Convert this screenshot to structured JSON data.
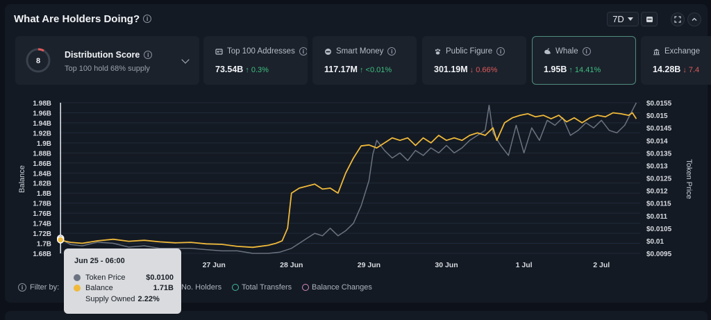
{
  "header": {
    "title": "What Are Holders Doing?",
    "range": "7D"
  },
  "distribution": {
    "title": "Distribution Score",
    "score": "8",
    "subtitle": "Top 100 hold 68% supply"
  },
  "cards": [
    {
      "label": "Top 100 Addresses",
      "icon": "address-book-icon",
      "value": "73.54B",
      "change": "↑ 0.3%",
      "direction": "up"
    },
    {
      "label": "Smart Money",
      "icon": "smart-money-icon",
      "value": "117.17M",
      "change": "↑ <0.01%",
      "direction": "up"
    },
    {
      "label": "Public Figure",
      "icon": "paw-icon",
      "value": "301.19M",
      "change": "↓ 0.66%",
      "direction": "down"
    },
    {
      "label": "Whale",
      "icon": "whale-icon",
      "value": "1.95B",
      "change": "↑ 14.41%",
      "direction": "up",
      "active": true
    },
    {
      "label": "Exchange",
      "icon": "bank-icon",
      "value": "14.28B",
      "change": "↓ 7.4",
      "direction": "down"
    }
  ],
  "filters": {
    "label": "Filter by:",
    "items": [
      {
        "label": "No. Holders",
        "color": "#8a929e"
      },
      {
        "label": "Total Transfers",
        "color": "#3fbf9f"
      },
      {
        "label": "Balance Changes",
        "color": "#d98cc4"
      }
    ]
  },
  "tooltip": {
    "title": "Jun 25 - 06:00",
    "rows": [
      {
        "label": "Token Price",
        "value": "$0.0100",
        "color": "#6b7380"
      },
      {
        "label": "Balance",
        "value": "1.71B",
        "color": "#f0b93a"
      },
      {
        "label": "Supply Owned",
        "value": "2.22%",
        "color": ""
      }
    ]
  },
  "chart_data": {
    "type": "line",
    "xlabel": "",
    "ylabel": "Balance",
    "y2label": "Token Price",
    "ylim": [
      1.68,
      1.98
    ],
    "y2lim": [
      0.0095,
      0.0155
    ],
    "yticks": [
      "1.68B",
      "1.7B",
      "1.72B",
      "1.74B",
      "1.76B",
      "1.78B",
      "1.8B",
      "1.82B",
      "1.84B",
      "1.86B",
      "1.88B",
      "1.9B",
      "1.92B",
      "1.94B",
      "1.96B",
      "1.98B"
    ],
    "y2ticks": [
      "$0.0095",
      "$0.01",
      "$0.0105",
      "$0.011",
      "$0.0115",
      "$0.012",
      "$0.0125",
      "$0.013",
      "$0.0135",
      "$0.014",
      "$0.0145",
      "$0.015",
      "$0.0155"
    ],
    "xlim": [
      0,
      7.5
    ],
    "xticks": [
      {
        "pos": 2,
        "label": "27 Jun"
      },
      {
        "pos": 3,
        "label": "28 Jun"
      },
      {
        "pos": 4,
        "label": "29 Jun"
      },
      {
        "pos": 5,
        "label": "30 Jun"
      },
      {
        "pos": 6,
        "label": "1 Jul"
      },
      {
        "pos": 7,
        "label": "2 Jul"
      }
    ],
    "grid": true,
    "hover_x": 0.02,
    "series": [
      {
        "name": "Balance",
        "axis": "left",
        "color": "#f0b93a",
        "x": [
          0.0,
          0.15,
          0.3,
          0.5,
          0.7,
          0.9,
          1.1,
          1.3,
          1.5,
          1.7,
          1.9,
          2.1,
          2.3,
          2.5,
          2.7,
          2.8,
          2.88,
          2.95,
          3.0,
          3.1,
          3.2,
          3.3,
          3.4,
          3.5,
          3.6,
          3.7,
          3.8,
          3.9,
          4.0,
          4.1,
          4.2,
          4.3,
          4.4,
          4.5,
          4.6,
          4.7,
          4.8,
          4.9,
          5.0,
          5.1,
          5.2,
          5.3,
          5.4,
          5.5,
          5.6,
          5.65,
          5.75,
          5.85,
          5.95,
          6.05,
          6.15,
          6.25,
          6.35,
          6.45,
          6.55,
          6.65,
          6.75,
          6.85,
          6.95,
          7.05,
          7.15,
          7.25,
          7.35,
          7.4,
          7.45
        ],
        "y": [
          1.707,
          1.702,
          1.7,
          1.705,
          1.708,
          1.704,
          1.706,
          1.703,
          1.701,
          1.702,
          1.699,
          1.698,
          1.694,
          1.692,
          1.696,
          1.7,
          1.705,
          1.73,
          1.8,
          1.81,
          1.814,
          1.818,
          1.808,
          1.81,
          1.8,
          1.84,
          1.87,
          1.894,
          1.896,
          1.89,
          1.9,
          1.91,
          1.905,
          1.91,
          1.895,
          1.91,
          1.9,
          1.915,
          1.905,
          1.91,
          1.905,
          1.915,
          1.92,
          1.915,
          1.93,
          1.905,
          1.94,
          1.95,
          1.955,
          1.958,
          1.952,
          1.955,
          1.948,
          1.955,
          1.942,
          1.95,
          1.94,
          1.95,
          1.955,
          1.952,
          1.96,
          1.958,
          1.955,
          1.96,
          1.948
        ]
      },
      {
        "name": "Token Price",
        "axis": "right",
        "color": "#6b7380",
        "x": [
          0.0,
          0.15,
          0.3,
          0.5,
          0.7,
          0.9,
          1.1,
          1.3,
          1.5,
          1.7,
          1.9,
          2.1,
          2.3,
          2.5,
          2.7,
          2.85,
          3.0,
          3.1,
          3.2,
          3.3,
          3.4,
          3.5,
          3.6,
          3.7,
          3.8,
          3.9,
          4.0,
          4.05,
          4.1,
          4.2,
          4.3,
          4.4,
          4.5,
          4.6,
          4.7,
          4.8,
          4.9,
          5.0,
          5.1,
          5.2,
          5.3,
          5.4,
          5.5,
          5.55,
          5.6,
          5.7,
          5.8,
          5.9,
          6.0,
          6.1,
          6.2,
          6.3,
          6.4,
          6.5,
          6.6,
          6.7,
          6.8,
          6.9,
          7.0,
          7.1,
          7.2,
          7.3,
          7.4,
          7.45
        ],
        "y": [
          0.0101,
          0.00985,
          0.0098,
          0.00995,
          0.0099,
          0.00975,
          0.0098,
          0.0097,
          0.0097,
          0.0097,
          0.00965,
          0.0096,
          0.0096,
          0.0095,
          0.0095,
          0.00955,
          0.0097,
          0.0099,
          0.0101,
          0.0103,
          0.0102,
          0.0105,
          0.0102,
          0.0104,
          0.0107,
          0.0114,
          0.0124,
          0.01345,
          0.014,
          0.0136,
          0.0133,
          0.0135,
          0.0132,
          0.0136,
          0.0134,
          0.0137,
          0.0135,
          0.0138,
          0.0135,
          0.0137,
          0.014,
          0.0142,
          0.0144,
          0.0154,
          0.0143,
          0.0138,
          0.0134,
          0.0146,
          0.0135,
          0.0145,
          0.014,
          0.0148,
          0.0146,
          0.0149,
          0.0142,
          0.0144,
          0.0147,
          0.0145,
          0.0148,
          0.0144,
          0.0143,
          0.0146,
          0.0152,
          0.0155
        ]
      }
    ]
  }
}
